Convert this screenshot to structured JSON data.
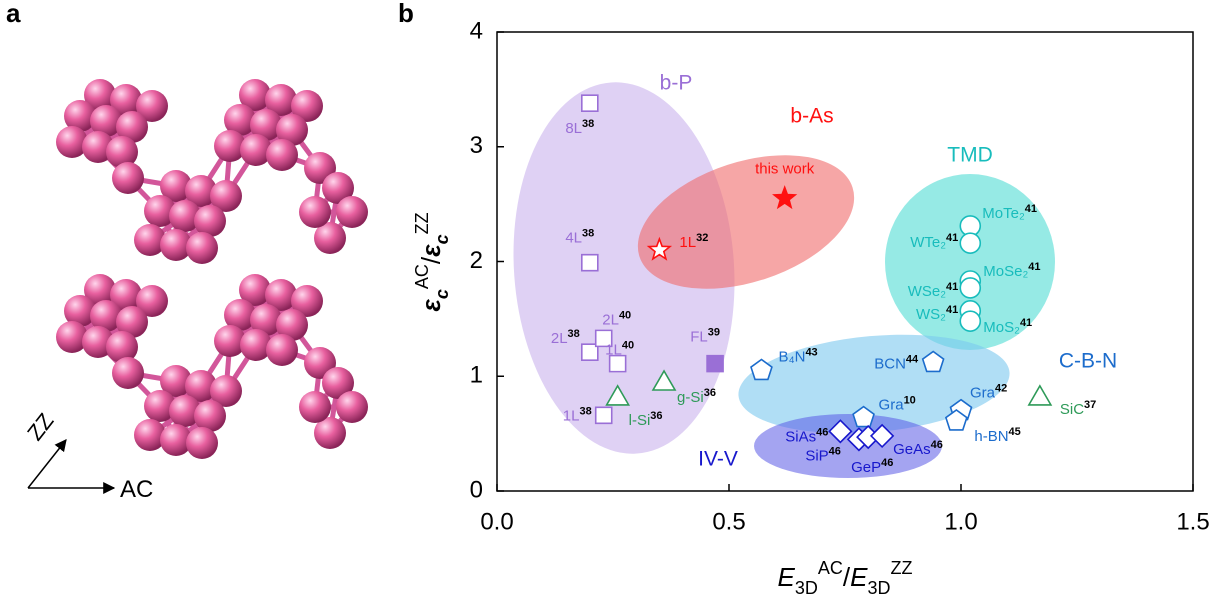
{
  "panel_labels": {
    "a": "a",
    "b": "b"
  },
  "axes_arrows": {
    "zz": "ZZ",
    "ac": "AC"
  },
  "chart_data": {
    "type": "scatter",
    "x_label": {
      "base1": "E",
      "sub1": "3D",
      "sup1": "AC",
      "slash": "/",
      "base2": "E",
      "sub2": "3D",
      "sup2": "ZZ"
    },
    "y_label": {
      "base1": "ε",
      "sub1": "c",
      "sup1": "AC",
      "slash": "/",
      "base2": "ε",
      "sub2": "c",
      "sup2": "ZZ"
    },
    "xlim": [
      0,
      1.5
    ],
    "ylim": [
      0,
      4
    ],
    "xticks": [
      {
        "value": 0,
        "label": "0.0"
      },
      {
        "value": 0.5,
        "label": "0.5"
      },
      {
        "value": 1,
        "label": "1.0"
      },
      {
        "value": 1.5,
        "label": "1.5"
      }
    ],
    "yticks": [
      0,
      1,
      2,
      3,
      4
    ],
    "series": [
      {
        "name": "b-P",
        "color": "#9a6fd6",
        "marker": "square",
        "x": [
          0.2,
          0.2,
          0.2,
          0.23,
          0.26,
          0.23,
          0.47
        ],
        "values": [
          3.38,
          1.99,
          1.21,
          1.33,
          1.11,
          0.66,
          1.11
        ],
        "filled": [
          false,
          false,
          false,
          false,
          false,
          false,
          true
        ],
        "labels": [
          "8L",
          "4L",
          "2L",
          "2L",
          "1L",
          "1L",
          "FL"
        ],
        "refs": [
          "38",
          "38",
          "38",
          "40",
          "40",
          "38",
          "39"
        ]
      },
      {
        "name": "b-As",
        "color": "#ff1010",
        "marker": "star",
        "x": [
          0.35,
          0.62
        ],
        "values": [
          2.1,
          2.55
        ],
        "filled": [
          false,
          true
        ],
        "labels": [
          "1L",
          "this work"
        ],
        "refs": [
          "32",
          null
        ]
      },
      {
        "name": "TMD",
        "color": "#18bcbc",
        "marker": "circle",
        "x": [
          1.02,
          1.02,
          1.02,
          1.02,
          1.02,
          1.02
        ],
        "values": [
          2.31,
          2.16,
          1.83,
          1.77,
          1.57,
          1.48
        ],
        "filled": [
          false,
          false,
          false,
          false,
          false,
          false
        ],
        "labels": [
          "MoTe₂",
          "WTe₂",
          "MoSe₂",
          "WSe₂",
          "WS₂",
          "MoS₂"
        ],
        "refs": [
          "41",
          "41",
          "41",
          "41",
          "41",
          "41"
        ]
      },
      {
        "name": "C-B-N",
        "color": "#1c6ccc",
        "marker": "pentagon",
        "x": [
          0.57,
          0.94,
          0.79,
          1.0,
          0.99
        ],
        "values": [
          1.05,
          1.12,
          0.64,
          0.7,
          0.61
        ],
        "filled": [
          false,
          false,
          false,
          false,
          false
        ],
        "labels": [
          "B₄N",
          "BCN",
          "Gra",
          "Gra",
          "h-BN"
        ],
        "refs": [
          "43",
          "44",
          "10",
          "42",
          "45"
        ]
      },
      {
        "name": "IV-V",
        "color": "#1818cc",
        "marker": "diamond",
        "x": [
          0.74,
          0.78,
          0.8,
          0.83
        ],
        "values": [
          0.52,
          0.45,
          0.47,
          0.48
        ],
        "filled": [
          false,
          false,
          false,
          false
        ],
        "labels": [
          "SiAs",
          "SiP",
          "GeP",
          "GeAs"
        ],
        "refs": [
          "46",
          "46",
          "46",
          "46"
        ]
      },
      {
        "color": "#2e9a58",
        "marker": "triangle",
        "x": [
          0.26,
          0.36,
          1.17
        ],
        "values": [
          0.82,
          0.95,
          0.82
        ],
        "filled": [
          false,
          false,
          false
        ],
        "labels": [
          "l-Si",
          "g-Si",
          "SiC"
        ],
        "refs": [
          "36",
          "36",
          "37"
        ]
      }
    ]
  }
}
